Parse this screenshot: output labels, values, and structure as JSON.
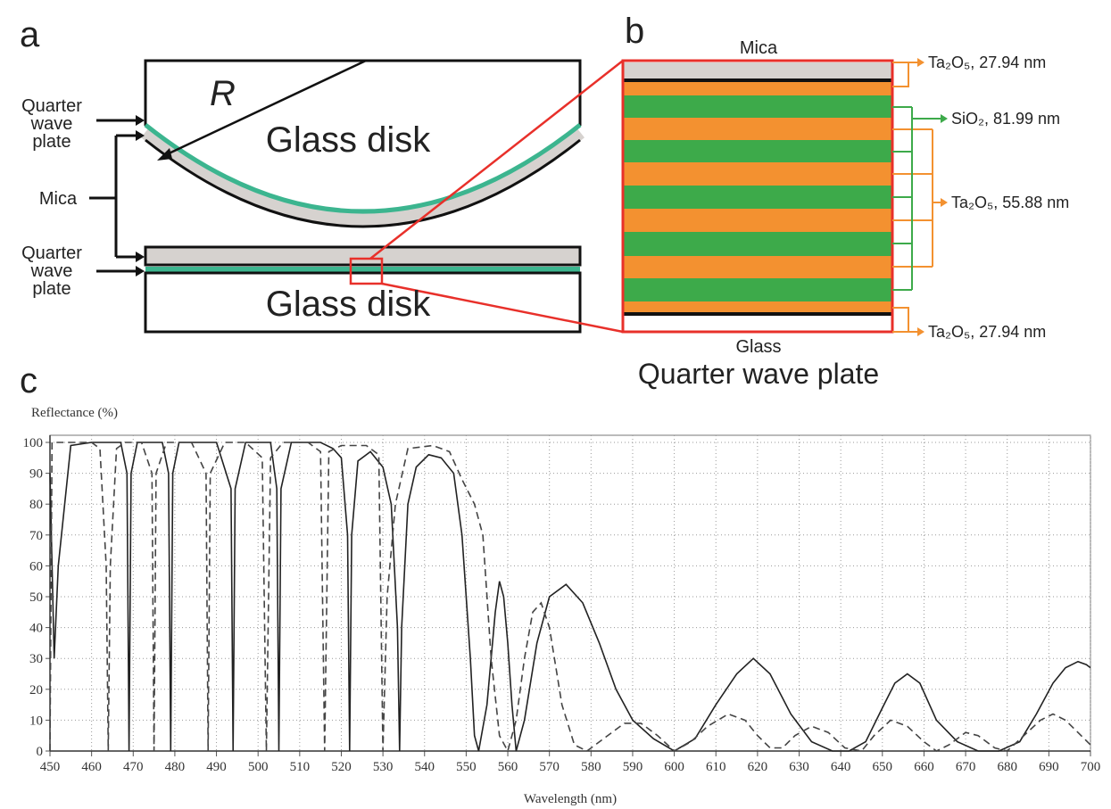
{
  "diagram": {
    "panel_a": {
      "label": "a",
      "radius": "R",
      "glass_disk_top": "Glass disk",
      "glass_disk_bottom": "Glass disk",
      "quarter_wave_plate_top": [
        "Quarter",
        "wave",
        "plate"
      ],
      "mica": "Mica",
      "quarter_wave_plate_bottom": [
        "Quarter",
        "wave",
        "plate"
      ]
    },
    "panel_b": {
      "label": "b",
      "mica": "Mica",
      "glass": "Glass",
      "caption": "Quarter wave plate",
      "layers": [
        "Ta₂O₅, 27.94 nm",
        "SiO₂, 81.99 nm",
        "Ta₂O₅, 55.88 nm",
        "Ta₂O₅, 27.94 nm"
      ]
    },
    "panel_c": {
      "label": "c"
    }
  },
  "chart_data": {
    "type": "line",
    "xlabel": "Wavelength (nm)",
    "ylabel": "Reflectance (%)",
    "xlim": [
      450,
      700
    ],
    "ylim": [
      0,
      100
    ],
    "xticks": [
      450,
      460,
      470,
      480,
      490,
      500,
      510,
      520,
      530,
      540,
      550,
      560,
      570,
      580,
      590,
      600,
      610,
      620,
      630,
      640,
      650,
      660,
      670,
      680,
      690,
      700
    ],
    "yticks": [
      0,
      10,
      20,
      30,
      40,
      50,
      60,
      70,
      80,
      90,
      100
    ],
    "grid": true,
    "series": [
      {
        "color": "#222222",
        "dashed": false,
        "x": [
          450,
          451,
          452,
          455,
          460,
          467,
          468.5,
          469,
          469.5,
          471,
          477,
          478.5,
          479,
          479.5,
          481,
          490,
          493.5,
          494,
          494.5,
          497,
          503,
          504.5,
          505,
          505.5,
          508,
          515,
          518,
          520,
          521.5,
          522,
          522.5,
          524,
          527,
          530,
          532,
          533.5,
          534,
          534.5,
          536,
          538,
          541,
          544,
          547,
          549,
          551,
          552,
          553,
          555,
          557,
          558,
          559,
          560,
          561,
          562,
          564,
          567,
          570,
          574,
          578,
          582,
          586,
          590,
          595,
          600,
          605,
          610,
          615,
          619,
          623,
          628,
          633,
          638,
          642,
          646,
          650,
          653,
          656,
          659,
          663,
          668,
          673,
          678,
          683,
          687,
          691,
          694,
          697,
          699,
          700
        ],
        "values": [
          90,
          30,
          60,
          99,
          100,
          100,
          90,
          0,
          90,
          100,
          100,
          90,
          0,
          90,
          100,
          100,
          85,
          0,
          85,
          100,
          100,
          85,
          0,
          85,
          100,
          100,
          98,
          95,
          70,
          0,
          70,
          94,
          97,
          92,
          80,
          40,
          0,
          40,
          80,
          92,
          96,
          95,
          90,
          70,
          30,
          5,
          0,
          15,
          45,
          55,
          50,
          35,
          15,
          0,
          10,
          35,
          50,
          54,
          48,
          35,
          20,
          10,
          4,
          0,
          4,
          15,
          25,
          30,
          25,
          12,
          3,
          0,
          0,
          3,
          14,
          22,
          25,
          22,
          10,
          3,
          0,
          0,
          3,
          12,
          22,
          27,
          29,
          28,
          27
        ]
      },
      {
        "color": "#444444",
        "dashed": true,
        "x": [
          450,
          450.5,
          452,
          460,
          462,
          463.5,
          464,
          464.5,
          466,
          468,
          472,
          474.5,
          475,
          475.5,
          478,
          484,
          487.5,
          488,
          488.5,
          492,
          497,
          501,
          502,
          503,
          506,
          512,
          515,
          516,
          517,
          520,
          526,
          529,
          530,
          531,
          533,
          536,
          542,
          546,
          549,
          552,
          554,
          556,
          558,
          560,
          562,
          564,
          566,
          568,
          570,
          573,
          576,
          579,
          583,
          588,
          592,
          596,
          600,
          604,
          608,
          613,
          617,
          620,
          623,
          626,
          629,
          633,
          637,
          641,
          645,
          648,
          652,
          656,
          660,
          663,
          666,
          670,
          673,
          677,
          680,
          684,
          688,
          691,
          694,
          697,
          700
        ],
        "values": [
          0,
          100,
          100,
          100,
          98,
          60,
          0,
          60,
          98,
          100,
          100,
          90,
          0,
          90,
          100,
          100,
          90,
          0,
          90,
          100,
          100,
          95,
          0,
          95,
          100,
          100,
          97,
          0,
          97,
          99,
          99,
          96,
          0,
          50,
          80,
          98,
          99,
          97,
          88,
          80,
          70,
          30,
          5,
          0,
          10,
          30,
          45,
          48,
          40,
          15,
          2,
          0,
          4,
          9,
          9,
          5,
          0,
          3,
          8,
          12,
          10,
          5,
          1,
          1,
          5,
          8,
          6,
          1,
          0,
          5,
          10,
          8,
          3,
          0,
          2,
          6,
          5,
          1,
          0,
          5,
          10,
          12,
          10,
          6,
          2
        ]
      }
    ]
  }
}
